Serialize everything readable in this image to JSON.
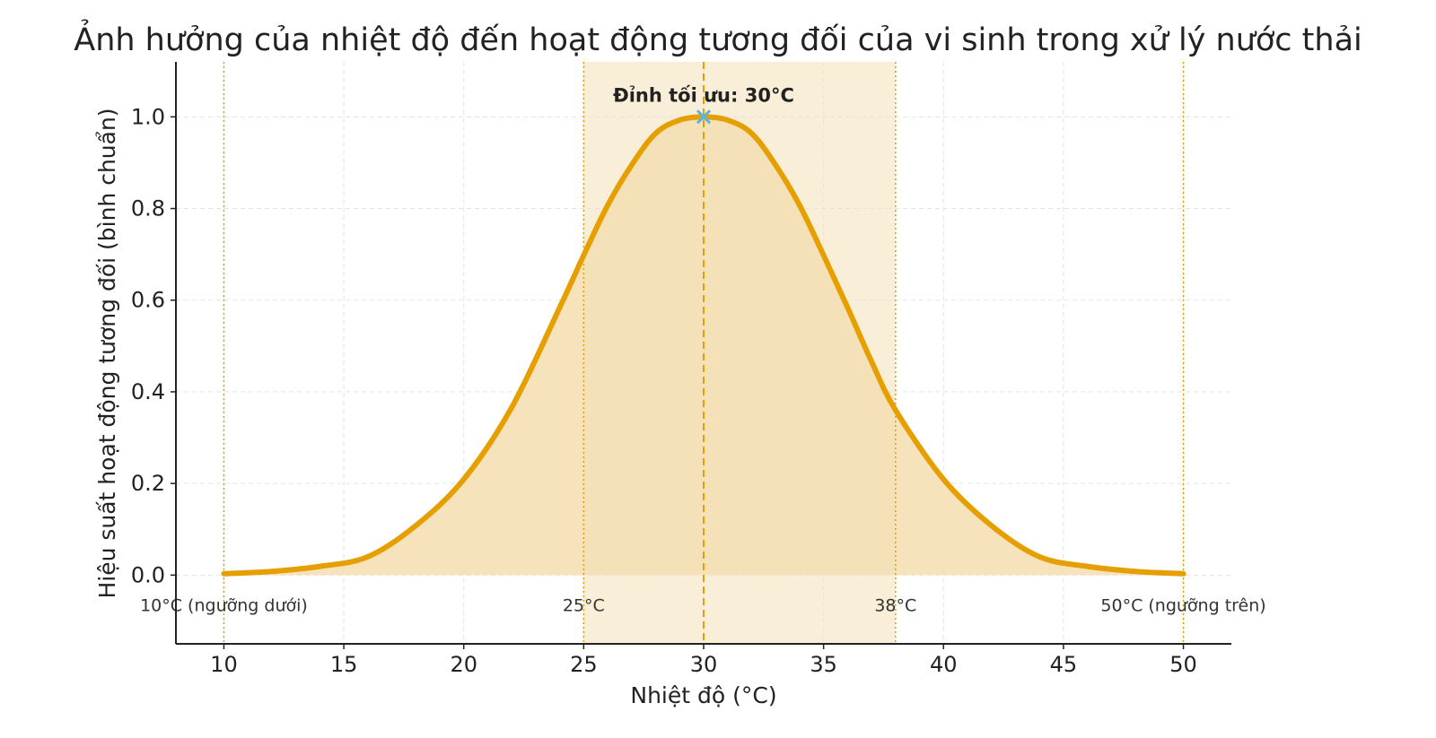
{
  "chart_data": {
    "type": "line",
    "title": "Ảnh hưởng của nhiệt độ đến hoạt động tương đối của vi sinh trong xử lý nước thải",
    "xlabel": "Nhiệt độ (°C)",
    "ylabel": "Hiệu suất hoạt động tương đối (bình chuẩn)",
    "xlim": [
      8,
      52
    ],
    "ylim": [
      -0.15,
      1.12
    ],
    "x_ticks": [
      10,
      15,
      20,
      25,
      30,
      35,
      40,
      45,
      50
    ],
    "y_ticks": [
      0.0,
      0.2,
      0.4,
      0.6,
      0.8,
      1.0
    ],
    "x_tick_labels": [
      "10",
      "15",
      "20",
      "25",
      "30",
      "35",
      "40",
      "45",
      "50"
    ],
    "y_tick_labels": [
      "0.0",
      "0.2",
      "0.4",
      "0.6",
      "0.8",
      "1.0"
    ],
    "grid": true,
    "series": [
      {
        "x": [
          10,
          12,
          14,
          16,
          18,
          20,
          22,
          24,
          25,
          26,
          27,
          28,
          29,
          30,
          31,
          32,
          33,
          34,
          35,
          36,
          37,
          38,
          40,
          42,
          44,
          46,
          48,
          50
        ],
        "values": [
          0.003,
          0.008,
          0.019,
          0.04,
          0.108,
          0.209,
          0.366,
          0.584,
          0.698,
          0.807,
          0.895,
          0.964,
          0.993,
          1.0,
          0.993,
          0.964,
          0.895,
          0.807,
          0.698,
          0.584,
          0.466,
          0.36,
          0.209,
          0.108,
          0.04,
          0.019,
          0.008,
          0.003
        ],
        "color": "#E69F00",
        "fill": true
      }
    ],
    "optimal_range": {
      "start": 25,
      "end": 38
    },
    "peak": {
      "x": 30,
      "y": 1.0,
      "label": "Đỉnh tối ưu: 30°C",
      "marker_color": "#56B4E9"
    },
    "vlines": [
      {
        "x": 10,
        "label": "10°C (ngưỡng dưới)",
        "style": "dotted"
      },
      {
        "x": 25,
        "label": "25°C",
        "style": "dotted"
      },
      {
        "x": 30,
        "label": "",
        "style": "dashed"
      },
      {
        "x": 38,
        "label": "38°C",
        "style": "dotted"
      },
      {
        "x": 50,
        "label": "50°C (ngưỡng trên)",
        "style": "dotted"
      }
    ],
    "annotation_y": -0.065,
    "colors": {
      "line": "#E69F00",
      "band": "#F9EFD9",
      "area": "#F4DEB0",
      "marker": "#56B4E9",
      "grid": "#e3e3e3",
      "axis": "#222222"
    }
  }
}
